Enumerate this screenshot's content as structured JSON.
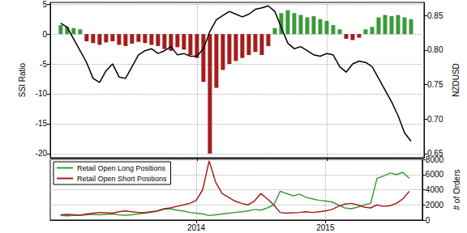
{
  "chart_data": [
    {
      "type": "bar",
      "x": [
        2012.95,
        2013,
        2013.05,
        2013.1,
        2013.15,
        2013.2,
        2013.25,
        2013.3,
        2013.35,
        2013.4,
        2013.45,
        2013.5,
        2013.55,
        2013.6,
        2013.65,
        2013.7,
        2013.75,
        2013.8,
        2013.85,
        2013.9,
        2013.95,
        2014,
        2014.05,
        2014.1,
        2014.15,
        2014.2,
        2014.25,
        2014.3,
        2014.35,
        2014.4,
        2014.45,
        2014.5,
        2014.55,
        2014.6,
        2014.65,
        2014.7,
        2014.75,
        2014.8,
        2014.85,
        2014.9,
        2014.95,
        2015,
        2015.05,
        2015.1,
        2015.15,
        2015.2,
        2015.25,
        2015.3,
        2015.35,
        2015.4,
        2015.45,
        2015.5,
        2015.55,
        2015.6,
        2015.65
      ],
      "xlim": [
        2012.87,
        2015.75
      ],
      "xticks": [
        2014,
        2015
      ],
      "ylabel": "SSI Ratio",
      "y2label": "NZDUSD",
      "ylim": [
        -20.7,
        5.3
      ],
      "yticks": [
        -20,
        -15,
        -10,
        -5,
        0,
        5
      ],
      "y2lim": [
        0.644,
        0.869
      ],
      "y2ticks": [
        0.65,
        {
          "value": 0.7,
          "label": "0.70"
        },
        0.75,
        {
          "value": 0.8,
          "label": "0.80"
        },
        0.85
      ],
      "grid": true,
      "tick_labels": "y",
      "series": [
        {
          "name": "SSI Ratio",
          "type": "bar",
          "values": [
            1.5,
            1.2,
            1.0,
            0.8,
            -1.2,
            -1.5,
            -1.8,
            -1.4,
            -1.2,
            -1.8,
            -2.0,
            -1.6,
            -1.3,
            -1.5,
            -1.8,
            -2.0,
            -2.5,
            -2.8,
            -2.2,
            -2.6,
            -3.5,
            -4.0,
            -8.0,
            -20.0,
            -9.0,
            -6.0,
            -5.0,
            -4.5,
            -4.0,
            -3.5,
            -3.0,
            -3.5,
            -2.0,
            1.0,
            3.5,
            4.0,
            3.5,
            3.2,
            2.8,
            3.0,
            2.5,
            2.2,
            1.5,
            0.8,
            -0.8,
            -1.0,
            -0.6,
            0.8,
            1.2,
            2.8,
            3.2,
            3.0,
            3.2,
            2.8,
            2.5
          ],
          "colors": [
            "#3a9a3a",
            "#3a9a3a",
            "#3a9a3a",
            "#3a9a3a",
            "#a51c1c",
            "#a51c1c",
            "#a51c1c",
            "#a51c1c",
            "#a51c1c",
            "#a51c1c",
            "#a51c1c",
            "#a51c1c",
            "#a51c1c",
            "#a51c1c",
            "#a51c1c",
            "#a51c1c",
            "#a51c1c",
            "#a51c1c",
            "#a51c1c",
            "#a51c1c",
            "#a51c1c",
            "#a51c1c",
            "#a51c1c",
            "#a51c1c",
            "#a51c1c",
            "#a51c1c",
            "#a51c1c",
            "#a51c1c",
            "#a51c1c",
            "#a51c1c",
            "#a51c1c",
            "#a51c1c",
            "#a51c1c",
            "#3a9a3a",
            "#3a9a3a",
            "#3a9a3a",
            "#3a9a3a",
            "#3a9a3a",
            "#3a9a3a",
            "#3a9a3a",
            "#3a9a3a",
            "#3a9a3a",
            "#3a9a3a",
            "#3a9a3a",
            "#a51c1c",
            "#a51c1c",
            "#a51c1c",
            "#3a9a3a",
            "#3a9a3a",
            "#3a9a3a",
            "#3a9a3a",
            "#3a9a3a",
            "#3a9a3a",
            "#3a9a3a",
            "#3a9a3a"
          ]
        },
        {
          "name": "NZDUSD",
          "type": "line",
          "axis": "y2",
          "color": "#000000",
          "values": [
            0.839,
            0.833,
            0.816,
            0.799,
            0.782,
            0.759,
            0.753,
            0.77,
            0.78,
            0.761,
            0.759,
            0.776,
            0.793,
            0.799,
            0.802,
            0.795,
            0.799,
            0.805,
            0.793,
            0.795,
            0.791,
            0.791,
            0.802,
            0.827,
            0.844,
            0.85,
            0.856,
            0.852,
            0.848,
            0.852,
            0.859,
            0.861,
            0.864,
            0.856,
            0.833,
            0.81,
            0.802,
            0.805,
            0.799,
            0.793,
            0.791,
            0.795,
            0.793,
            0.776,
            0.768,
            0.78,
            0.784,
            0.782,
            0.776,
            0.759,
            0.742,
            0.725,
            0.705,
            0.68,
            0.668
          ]
        }
      ]
    },
    {
      "type": "line",
      "x": [
        2012.95,
        2013,
        2013.05,
        2013.1,
        2013.15,
        2013.2,
        2013.25,
        2013.3,
        2013.35,
        2013.4,
        2013.45,
        2013.5,
        2013.55,
        2013.6,
        2013.65,
        2013.7,
        2013.75,
        2013.8,
        2013.85,
        2013.9,
        2013.95,
        2014,
        2014.05,
        2014.1,
        2014.15,
        2014.2,
        2014.25,
        2014.3,
        2014.35,
        2014.4,
        2014.45,
        2014.5,
        2014.55,
        2014.6,
        2014.65,
        2014.7,
        2014.75,
        2014.8,
        2014.85,
        2014.9,
        2014.95,
        2015,
        2015.05,
        2015.1,
        2015.15,
        2015.2,
        2015.25,
        2015.3,
        2015.35,
        2015.4,
        2015.45,
        2015.5,
        2015.55,
        2015.6,
        2015.65
      ],
      "xlim": [
        2012.87,
        2015.75
      ],
      "xticks": [
        2014,
        2015
      ],
      "ylabel": "# of Orders",
      "ylim": [
        0,
        8000
      ],
      "yticks": [
        0,
        2000,
        4000,
        6000,
        8000
      ],
      "grid": true,
      "legend": "upper left",
      "series": [
        {
          "name": "Retail Open Long Positions",
          "color": "#3a9a3a",
          "values": [
            600,
            550,
            600,
            650,
            700,
            750,
            700,
            750,
            800,
            700,
            650,
            700,
            800,
            900,
            1000,
            1200,
            1400,
            1500,
            1300,
            1200,
            1000,
            900,
            800,
            600,
            700,
            800,
            900,
            1000,
            1100,
            1200,
            1400,
            1300,
            1600,
            2000,
            3800,
            3500,
            3200,
            3400,
            3000,
            2800,
            2600,
            2500,
            2400,
            2000,
            1600,
            1500,
            1700,
            2000,
            2200,
            5500,
            5800,
            6200,
            6000,
            6300,
            5500
          ]
        },
        {
          "name": "Retail Open Short Positions",
          "color": "#a51c1c",
          "values": [
            700,
            750,
            700,
            650,
            800,
            900,
            1000,
            950,
            900,
            1100,
            1200,
            1100,
            1000,
            1000,
            1100,
            1200,
            1500,
            1600,
            1800,
            2000,
            2200,
            2600,
            4000,
            7800,
            5000,
            3500,
            3000,
            2500,
            2200,
            2000,
            2500,
            3500,
            2800,
            2000,
            1000,
            900,
            950,
            1000,
            1100,
            1000,
            1100,
            1200,
            1400,
            1800,
            2100,
            2200,
            2000,
            1700,
            1600,
            2000,
            1800,
            1900,
            2200,
            2800,
            3800
          ]
        }
      ]
    }
  ]
}
